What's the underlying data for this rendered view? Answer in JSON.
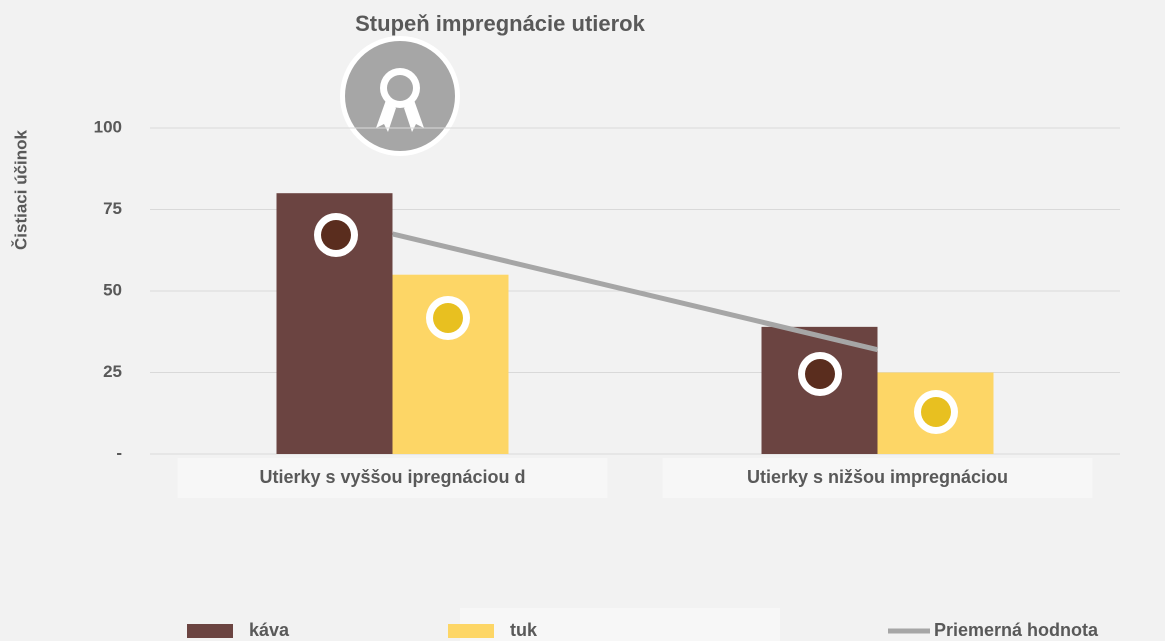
{
  "chart_data": {
    "type": "bar",
    "title": "Stupeň impregnácie utierok",
    "y_label": "Čistiaci účinok",
    "categories": [
      "Utierky s vyššou ipregnáciou d",
      "Utierky s nižšou impregnáciou"
    ],
    "series": [
      {
        "name": "káva",
        "type": "bar",
        "color": "#6b4441",
        "values": [
          80,
          39
        ]
      },
      {
        "name": "tuk",
        "type": "bar",
        "color": "#fdd666",
        "values": [
          55,
          25
        ]
      },
      {
        "name": "Priemerná hodnota",
        "type": "line",
        "color": "#a6a6a6",
        "values": [
          67.5,
          32
        ]
      }
    ],
    "ylim": [
      0,
      100
    ],
    "yticks": [
      {
        "value": 0,
        "label": "-"
      },
      25,
      50,
      75,
      100
    ],
    "grid": true
  }
}
